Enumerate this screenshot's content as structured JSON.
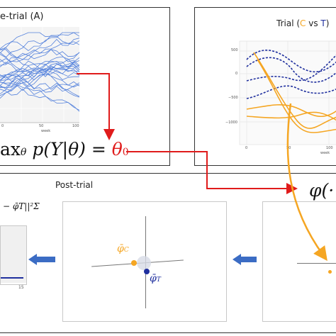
{
  "pretrial": {
    "title": "e-trial (A)",
    "x_axis_label": "week",
    "x_ticks": [
      "0",
      "50",
      "100"
    ]
  },
  "trial": {
    "title_prefix": "Trial (",
    "title_c": "C",
    "title_vs": " vs ",
    "title_t": "T",
    "title_suffix": ")",
    "x_axis_label": "week",
    "x_ticks": [
      "0",
      "50",
      "100"
    ],
    "y_ticks": [
      "500",
      "0",
      "−500",
      "−1000"
    ]
  },
  "equation": {
    "left": "ax",
    "sub": "θ",
    "mid": " p(Y|θ) = ",
    "rhs": "θ",
    "rhs_sub": "0"
  },
  "posttrial": {
    "title": "Post-trial",
    "norm_formula": "− φ̄T||²Σ",
    "phi_formula": "φ(·",
    "phi_c_label": "φ̄",
    "phi_c_sub": "C",
    "phi_t_label": "φ̄",
    "phi_t_sub": "T",
    "mini_tick": "15"
  },
  "colors": {
    "blue_lines": "#3a6fd8",
    "orange": "#f5a623",
    "navy": "#1f2f9e",
    "red_arrow": "#e01b1b",
    "arrow_blue": "#3b6cc4"
  }
}
